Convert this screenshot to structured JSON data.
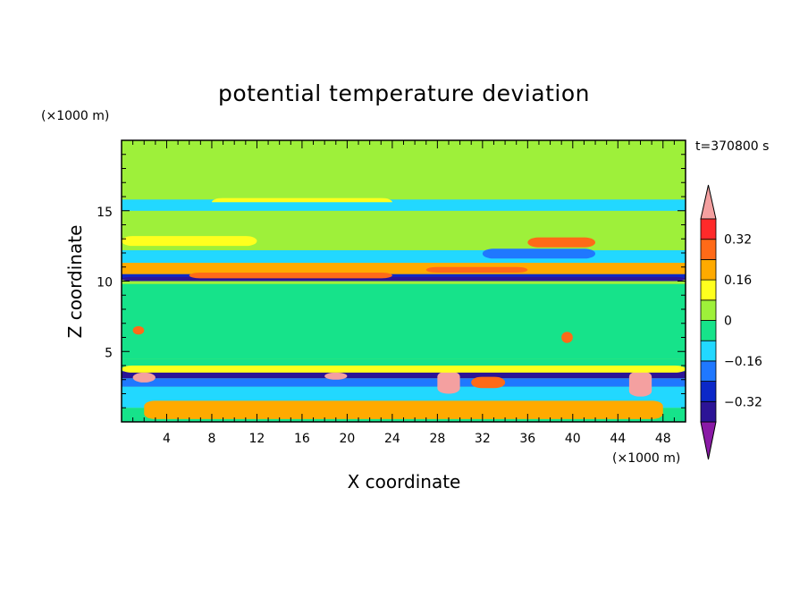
{
  "chart_data": {
    "type": "heatmap",
    "title": "potential temperature deviation",
    "xlabel": "X coordinate",
    "ylabel": "Z coordinate",
    "x_unit": "(×1000 m)",
    "y_unit": "(×1000 m)",
    "time_label": "t=370800 s",
    "xlim": [
      0,
      50
    ],
    "ylim": [
      0,
      20
    ],
    "x_ticks": [
      4,
      8,
      12,
      16,
      20,
      24,
      28,
      32,
      36,
      40,
      44,
      48
    ],
    "x_tick_labels": [
      "4",
      "8",
      "12",
      "16",
      "20",
      "24",
      "28",
      "32",
      "36",
      "40",
      "44",
      "48"
    ],
    "y_ticks": [
      5,
      10,
      15
    ],
    "y_tick_labels": [
      "5",
      "10",
      "15"
    ],
    "colorbar": {
      "levels": [
        -0.4,
        -0.32,
        -0.24,
        -0.16,
        -0.08,
        0,
        0.08,
        0.16,
        0.24,
        0.32,
        0.4
      ],
      "tick_values": [
        -0.32,
        -0.16,
        0,
        0.16,
        0.32
      ],
      "tick_labels": [
        "−0.32",
        "−0.16",
        "0",
        "0.16",
        "0.32"
      ],
      "colors": [
        "#8a1aa6",
        "#2c1496",
        "#0c28c8",
        "#1f78ff",
        "#22d8ff",
        "#16e38a",
        "#9ef03a",
        "#ffff1e",
        "#ffaa00",
        "#ff6a18",
        "#ff2a2a",
        "#f4a0a0"
      ]
    },
    "bands": [
      {
        "z": [
          0.0,
          1.0
        ],
        "value": -0.02
      },
      {
        "z": [
          1.0,
          2.5
        ],
        "value": -0.1
      },
      {
        "z": [
          2.5,
          3.1
        ],
        "value": -0.18
      },
      {
        "z": [
          3.1,
          3.6
        ],
        "value": -0.34
      },
      {
        "z": [
          3.6,
          4.5
        ],
        "value": -0.02
      },
      {
        "z": [
          4.5,
          9.8
        ],
        "value": -0.02
      },
      {
        "z": [
          9.8,
          10.1
        ],
        "value": 0.03
      },
      {
        "z": [
          10.1,
          10.5
        ],
        "value": -0.26
      },
      {
        "z": [
          10.5,
          11.3
        ],
        "value": 0.18
      },
      {
        "z": [
          11.3,
          12.2
        ],
        "value": -0.1
      },
      {
        "z": [
          12.2,
          13.5
        ],
        "value": 0.05
      },
      {
        "z": [
          13.5,
          15.0
        ],
        "value": 0.03
      },
      {
        "z": [
          15.0,
          15.8
        ],
        "value": -0.1
      },
      {
        "z": [
          15.8,
          16.8
        ],
        "value": 0.03
      },
      {
        "z": [
          16.8,
          20.0
        ],
        "value": 0.03
      }
    ],
    "patches": [
      {
        "x": [
          0,
          50
        ],
        "z": [
          10.0,
          10.3
        ],
        "value": -0.34
      },
      {
        "x": [
          6,
          24
        ],
        "z": [
          10.2,
          10.6
        ],
        "value": 0.24
      },
      {
        "x": [
          27,
          36
        ],
        "z": [
          10.6,
          11.0
        ],
        "value": 0.24
      },
      {
        "x": [
          0,
          12
        ],
        "z": [
          12.5,
          13.2
        ],
        "value": 0.15
      },
      {
        "x": [
          36,
          42
        ],
        "z": [
          12.4,
          13.1
        ],
        "value": 0.24
      },
      {
        "x": [
          8,
          24
        ],
        "z": [
          15.3,
          15.9
        ],
        "value": 0.15
      },
      {
        "x": [
          0,
          50
        ],
        "z": [
          11.3,
          12.0
        ],
        "value": -0.1
      },
      {
        "x": [
          0,
          50
        ],
        "z": [
          15.0,
          15.6
        ],
        "value": -0.1
      },
      {
        "x": [
          32,
          42
        ],
        "z": [
          11.6,
          12.3
        ],
        "value": -0.18
      },
      {
        "x": [
          1,
          3
        ],
        "z": [
          2.8,
          3.5
        ],
        "value": 0.4
      },
      {
        "x": [
          18,
          20
        ],
        "z": [
          3.0,
          3.5
        ],
        "value": 0.4
      },
      {
        "x": [
          28,
          30
        ],
        "z": [
          2.0,
          3.6
        ],
        "value": 0.4
      },
      {
        "x": [
          45,
          47
        ],
        "z": [
          1.8,
          3.6
        ],
        "value": 0.4
      },
      {
        "x": [
          31,
          34
        ],
        "z": [
          2.4,
          3.2
        ],
        "value": 0.3
      },
      {
        "x": [
          1,
          2
        ],
        "z": [
          6.2,
          6.8
        ],
        "value": 0.3
      },
      {
        "x": [
          39,
          40
        ],
        "z": [
          5.6,
          6.4
        ],
        "value": 0.3
      },
      {
        "x": [
          2,
          48
        ],
        "z": [
          0.2,
          1.5
        ],
        "value": 0.16
      },
      {
        "x": [
          0,
          50
        ],
        "z": [
          3.5,
          4.0
        ],
        "value": 0.08
      }
    ]
  }
}
